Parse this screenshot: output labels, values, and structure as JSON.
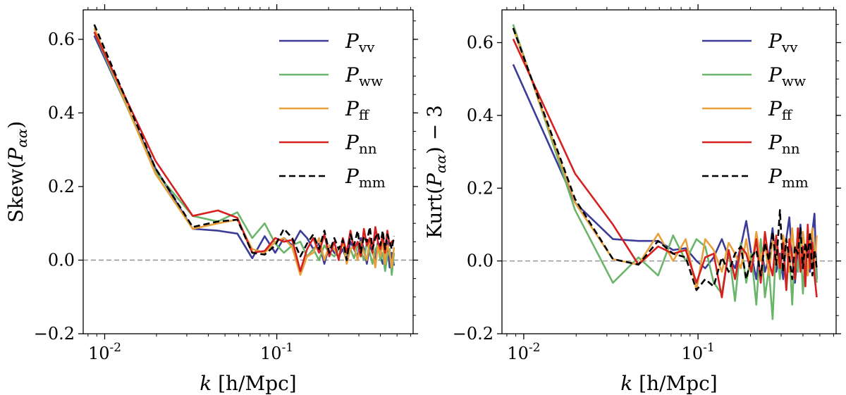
{
  "chart_data": [
    {
      "type": "line",
      "panel": "left",
      "xscale": "log",
      "xlim": [
        0.0075,
        0.62
      ],
      "ylim": [
        -0.2,
        0.68
      ],
      "xlabel": {
        "sym": "k",
        "unit": "[h/Mpc]"
      },
      "ylabel": {
        "pre": "Skew(",
        "sym": "P",
        "sub": "αα",
        "post": ")"
      },
      "yticks": [
        -0.2,
        0.0,
        0.2,
        0.4,
        0.6
      ],
      "ytick_labels": [
        "−0.2",
        "0.0",
        "0.2",
        "0.4",
        "0.6"
      ],
      "xticks": [
        0.01,
        0.1
      ],
      "xtick_labels": [
        {
          "base": "10",
          "exp": "-2"
        },
        {
          "base": "10",
          "exp": "-1"
        }
      ],
      "reference_line": 0.0,
      "legend_position": "top-right",
      "series": [
        {
          "name": "P",
          "sub": "vv",
          "color": "#3b3b9a",
          "dash": false,
          "x": [
            0.0087,
            0.0197,
            0.0325,
            0.0455,
            0.059,
            0.072,
            0.085,
            0.098,
            0.11,
            0.123,
            0.137,
            0.15,
            0.163,
            0.176,
            0.189,
            0.202,
            0.216,
            0.229,
            0.242,
            0.255,
            0.268,
            0.281,
            0.295,
            0.308,
            0.321,
            0.334,
            0.347,
            0.36,
            0.374,
            0.387,
            0.4,
            0.413,
            0.426,
            0.439,
            0.453,
            0.466,
            0.48
          ],
          "y": [
            0.61,
            0.25,
            0.085,
            0.08,
            0.072,
            0.005,
            0.065,
            0.02,
            0.06,
            0.04,
            0.08,
            0.06,
            0.03,
            0.045,
            -0.01,
            0.04,
            0.02,
            0.01,
            0.03,
            0.0,
            0.05,
            0.03,
            0.01,
            0.06,
            0.03,
            -0.01,
            0.04,
            0.02,
            0.0,
            0.05,
            0.01,
            -0.01,
            0.03,
            0.05,
            -0.02,
            0.02,
            -0.015
          ]
        },
        {
          "name": "P",
          "sub": "ww",
          "color": "#6ab56a",
          "dash": false,
          "x": [
            0.0087,
            0.0197,
            0.0325,
            0.0455,
            0.059,
            0.072,
            0.085,
            0.098,
            0.11,
            0.123,
            0.137,
            0.15,
            0.163,
            0.176,
            0.189,
            0.202,
            0.216,
            0.229,
            0.242,
            0.255,
            0.268,
            0.281,
            0.295,
            0.308,
            0.321,
            0.334,
            0.347,
            0.36,
            0.374,
            0.387,
            0.4,
            0.413,
            0.426,
            0.439,
            0.453,
            0.466,
            0.48
          ],
          "y": [
            0.62,
            0.24,
            0.12,
            0.105,
            0.13,
            0.06,
            0.1,
            0.045,
            0.02,
            0.04,
            0.05,
            0.01,
            0.03,
            0.0,
            0.04,
            0.02,
            0.01,
            0.03,
            0.045,
            0.015,
            0.03,
            0.005,
            0.04,
            0.025,
            0.0,
            0.05,
            0.02,
            -0.01,
            0.03,
            0.04,
            0.0,
            0.02,
            -0.03,
            0.01,
            0.03,
            -0.04,
            0.02
          ]
        },
        {
          "name": "P",
          "sub": "ff",
          "color": "#e8a03c",
          "dash": false,
          "x": [
            0.0087,
            0.0197,
            0.0325,
            0.0455,
            0.059,
            0.072,
            0.085,
            0.098,
            0.11,
            0.123,
            0.137,
            0.15,
            0.163,
            0.176,
            0.189,
            0.202,
            0.216,
            0.229,
            0.242,
            0.255,
            0.268,
            0.281,
            0.295,
            0.308,
            0.321,
            0.334,
            0.347,
            0.36,
            0.374,
            0.387,
            0.4,
            0.413,
            0.426,
            0.439,
            0.453,
            0.466,
            0.48
          ],
          "y": [
            0.63,
            0.235,
            0.085,
            0.1,
            0.11,
            0.03,
            0.02,
            0.05,
            0.06,
            0.035,
            -0.04,
            0.01,
            0.02,
            0.06,
            0.0,
            0.04,
            0.03,
            0.01,
            0.05,
            -0.01,
            0.03,
            0.04,
            0.0,
            0.05,
            0.02,
            0.0,
            0.06,
            0.03,
            -0.02,
            0.04,
            0.01,
            0.05,
            -0.01,
            0.04,
            0.02,
            -0.02,
            0.035
          ]
        },
        {
          "name": "P",
          "sub": "nn",
          "color": "#d62020",
          "dash": false,
          "x": [
            0.0087,
            0.0197,
            0.0325,
            0.0455,
            0.059,
            0.072,
            0.085,
            0.098,
            0.11,
            0.123,
            0.137,
            0.15,
            0.163,
            0.176,
            0.189,
            0.202,
            0.216,
            0.229,
            0.242,
            0.255,
            0.268,
            0.281,
            0.295,
            0.308,
            0.321,
            0.334,
            0.347,
            0.36,
            0.374,
            0.387,
            0.4,
            0.413,
            0.426,
            0.439,
            0.453,
            0.466,
            0.48
          ],
          "y": [
            0.62,
            0.27,
            0.12,
            0.135,
            0.115,
            0.02,
            0.025,
            0.06,
            0.05,
            0.055,
            -0.03,
            0.03,
            0.06,
            0.02,
            0.07,
            0.01,
            0.05,
            0.0,
            0.06,
            0.02,
            0.08,
            0.03,
            0.05,
            0.01,
            0.085,
            0.04,
            0.06,
            0.02,
            0.09,
            0.05,
            0.03,
            0.07,
            0.02,
            0.08,
            0.04,
            0.05,
            0.055
          ]
        },
        {
          "name": "P",
          "sub": "mm",
          "color": "#000000",
          "dash": true,
          "x": [
            0.0087,
            0.0197,
            0.0325,
            0.0455,
            0.059,
            0.072,
            0.085,
            0.098,
            0.11,
            0.123,
            0.137,
            0.15,
            0.163,
            0.176,
            0.189,
            0.202,
            0.216,
            0.229,
            0.242,
            0.255,
            0.268,
            0.281,
            0.295,
            0.308,
            0.321,
            0.334,
            0.347,
            0.36,
            0.374,
            0.387,
            0.4,
            0.413,
            0.426,
            0.439,
            0.453,
            0.466,
            0.48
          ],
          "y": [
            0.64,
            0.25,
            0.09,
            0.105,
            0.11,
            0.02,
            0.015,
            0.04,
            0.085,
            0.06,
            0.01,
            0.045,
            0.07,
            0.03,
            0.08,
            0.02,
            0.06,
            0.03,
            0.055,
            0.0,
            0.07,
            0.04,
            0.08,
            0.02,
            0.065,
            0.05,
            0.09,
            0.03,
            0.06,
            0.075,
            0.04,
            0.08,
            0.03,
            0.07,
            0.05,
            0.03,
            0.065
          ]
        }
      ]
    },
    {
      "type": "line",
      "panel": "right",
      "xscale": "log",
      "xlim": [
        0.0075,
        0.62
      ],
      "ylim": [
        -0.2,
        0.69
      ],
      "xlabel": {
        "sym": "k",
        "unit": "[h/Mpc]"
      },
      "ylabel": {
        "pre": "Kurt(",
        "sym": "P",
        "sub": "αα",
        "post": ") − 3"
      },
      "yticks": [
        -0.2,
        0.0,
        0.2,
        0.4,
        0.6
      ],
      "ytick_labels": [
        "−0.2",
        "0.0",
        "0.2",
        "0.4",
        "0.6"
      ],
      "xticks": [
        0.01,
        0.1
      ],
      "xtick_labels": [
        {
          "base": "10",
          "exp": "-2"
        },
        {
          "base": "10",
          "exp": "-1"
        }
      ],
      "reference_line": 0.0,
      "legend_position": "top-right",
      "series": [
        {
          "name": "P",
          "sub": "vv",
          "color": "#3b3b9a",
          "dash": false,
          "x": [
            0.0087,
            0.0197,
            0.0325,
            0.0455,
            0.059,
            0.072,
            0.085,
            0.098,
            0.11,
            0.123,
            0.137,
            0.15,
            0.163,
            0.176,
            0.189,
            0.202,
            0.216,
            0.229,
            0.242,
            0.255,
            0.268,
            0.281,
            0.295,
            0.308,
            0.321,
            0.334,
            0.347,
            0.36,
            0.374,
            0.387,
            0.4,
            0.413,
            0.426,
            0.439,
            0.453,
            0.466,
            0.48
          ],
          "y": [
            0.54,
            0.16,
            0.06,
            0.055,
            0.055,
            0.03,
            0.035,
            0.0,
            -0.02,
            0.01,
            0.06,
            0.01,
            -0.02,
            0.04,
            0.11,
            0.02,
            -0.05,
            0.05,
            -0.03,
            0.01,
            0.09,
            -0.03,
            0.02,
            -0.05,
            0.06,
            0.12,
            0.01,
            -0.06,
            0.03,
            0.1,
            -0.02,
            0.01,
            0.05,
            -0.03,
            0.08,
            0.13,
            -0.05
          ]
        },
        {
          "name": "P",
          "sub": "ww",
          "color": "#6ab56a",
          "dash": false,
          "x": [
            0.0087,
            0.0197,
            0.0325,
            0.0455,
            0.059,
            0.072,
            0.085,
            0.098,
            0.11,
            0.123,
            0.137,
            0.15,
            0.163,
            0.176,
            0.189,
            0.202,
            0.216,
            0.229,
            0.242,
            0.255,
            0.268,
            0.281,
            0.295,
            0.308,
            0.321,
            0.334,
            0.347,
            0.36,
            0.374,
            0.387,
            0.4,
            0.413,
            0.426,
            0.439,
            0.453,
            0.466,
            0.48
          ],
          "y": [
            0.65,
            0.14,
            -0.06,
            0.01,
            -0.04,
            0.07,
            0.0,
            0.06,
            0.04,
            -0.06,
            -0.09,
            0.03,
            -0.11,
            0.05,
            -0.06,
            0.02,
            -0.12,
            0.06,
            -0.1,
            -0.02,
            -0.16,
            0.05,
            -0.05,
            0.07,
            -0.08,
            0.03,
            -0.12,
            0.04,
            -0.03,
            0.06,
            -0.09,
            0.02,
            -0.04,
            0.05,
            -0.02,
            0.04,
            -0.06
          ]
        },
        {
          "name": "P",
          "sub": "ff",
          "color": "#e8a03c",
          "dash": false,
          "x": [
            0.0087,
            0.0197,
            0.0325,
            0.0455,
            0.059,
            0.072,
            0.085,
            0.098,
            0.11,
            0.123,
            0.137,
            0.15,
            0.163,
            0.176,
            0.189,
            0.202,
            0.216,
            0.229,
            0.242,
            0.255,
            0.268,
            0.281,
            0.295,
            0.308,
            0.321,
            0.334,
            0.347,
            0.36,
            0.374,
            0.387,
            0.4,
            0.413,
            0.426,
            0.439,
            0.453,
            0.466,
            0.48
          ],
          "y": [
            0.64,
            0.16,
            0.005,
            -0.01,
            0.075,
            0.0,
            0.06,
            -0.08,
            0.06,
            0.03,
            -0.03,
            0.05,
            0.02,
            -0.02,
            0.06,
            -0.03,
            0.08,
            0.0,
            0.05,
            -0.04,
            0.06,
            0.01,
            -0.02,
            0.07,
            0.03,
            -0.03,
            0.09,
            0.0,
            0.05,
            -0.01,
            0.08,
            0.02,
            -0.04,
            0.05,
            0.09,
            -0.02,
            0.07
          ]
        },
        {
          "name": "P",
          "sub": "nn",
          "color": "#d62020",
          "dash": false,
          "x": [
            0.0087,
            0.0197,
            0.0325,
            0.0455,
            0.059,
            0.072,
            0.085,
            0.098,
            0.11,
            0.123,
            0.137,
            0.15,
            0.163,
            0.176,
            0.189,
            0.202,
            0.216,
            0.229,
            0.242,
            0.255,
            0.268,
            0.281,
            0.295,
            0.308,
            0.321,
            0.334,
            0.347,
            0.36,
            0.374,
            0.387,
            0.4,
            0.413,
            0.426,
            0.439,
            0.453,
            0.466,
            0.48
          ],
          "y": [
            0.61,
            0.24,
            0.1,
            -0.01,
            0.04,
            0.02,
            0.03,
            -0.06,
            0.01,
            0.02,
            -0.1,
            0.03,
            -0.05,
            0.04,
            0.02,
            -0.03,
            0.06,
            -0.06,
            0.08,
            0.0,
            -0.04,
            0.07,
            -0.02,
            0.05,
            -0.08,
            0.06,
            0.01,
            -0.05,
            0.09,
            -0.03,
            0.04,
            -0.07,
            0.1,
            -0.02,
            0.05,
            -0.04,
            -0.1
          ]
        },
        {
          "name": "P",
          "sub": "mm",
          "color": "#000000",
          "dash": true,
          "x": [
            0.0087,
            0.0197,
            0.0325,
            0.0455,
            0.059,
            0.072,
            0.085,
            0.098,
            0.11,
            0.123,
            0.137,
            0.15,
            0.163,
            0.176,
            0.189,
            0.202,
            0.216,
            0.229,
            0.242,
            0.255,
            0.268,
            0.281,
            0.295,
            0.308,
            0.321,
            0.334,
            0.347,
            0.36,
            0.374,
            0.387,
            0.4,
            0.413,
            0.426,
            0.439,
            0.453,
            0.466,
            0.48
          ],
          "y": [
            0.64,
            0.17,
            0.005,
            -0.01,
            0.055,
            0.02,
            0.01,
            -0.08,
            -0.05,
            -0.07,
            0.01,
            -0.03,
            0.02,
            0.04,
            -0.05,
            0.01,
            0.03,
            -0.04,
            0.05,
            0.0,
            0.08,
            -0.01,
            0.14,
            -0.03,
            0.06,
            0.01,
            -0.05,
            0.04,
            0.02,
            0.09,
            -0.02,
            0.05,
            0.01,
            0.08,
            -0.04,
            0.03,
            -0.02
          ]
        }
      ]
    }
  ]
}
